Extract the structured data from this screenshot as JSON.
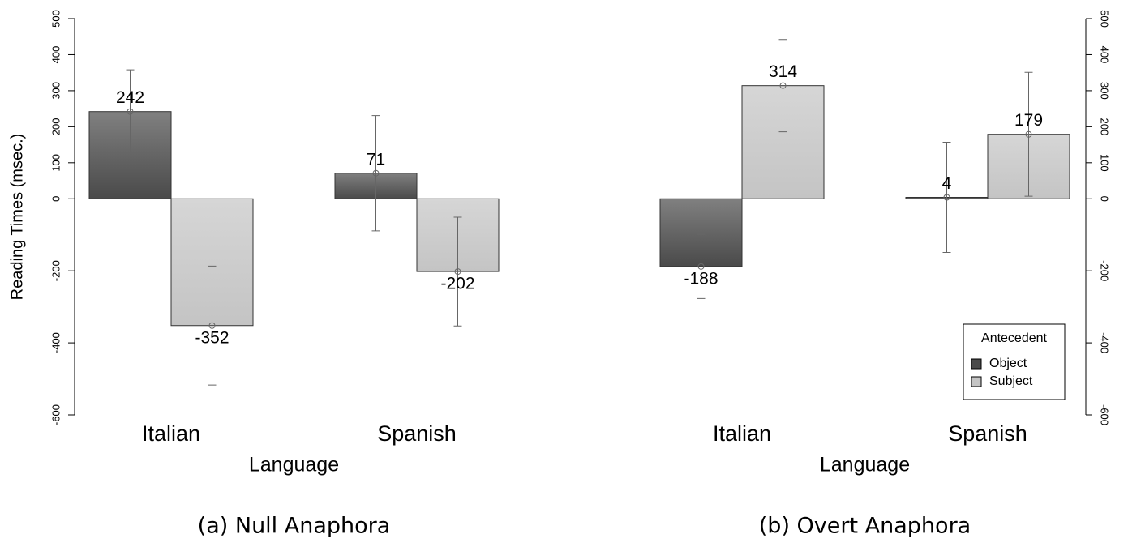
{
  "chart_data": [
    {
      "type": "bar",
      "caption": "(a) Null Anaphora",
      "xlabel": "Language",
      "ylabel": "Reading Times (msec.)",
      "categories": [
        "Italian",
        "Spanish"
      ],
      "series": [
        {
          "name": "Object",
          "color": "#4a4a4a",
          "values": [
            242,
            71
          ],
          "errors": [
            116,
            160
          ]
        },
        {
          "name": "Subject",
          "color": "#c4c4c4",
          "values": [
            -352,
            -202
          ],
          "errors": [
            165,
            151
          ]
        }
      ],
      "ylim": [
        -600,
        500
      ],
      "yticks": [
        -600,
        -400,
        -200,
        0,
        100,
        200,
        300,
        400,
        500
      ],
      "y_axis": "left"
    },
    {
      "type": "bar",
      "caption": "(b) Overt Anaphora",
      "xlabel": "Language",
      "categories": [
        "Italian",
        "Spanish"
      ],
      "series": [
        {
          "name": "Object",
          "color": "#4a4a4a",
          "values": [
            -188,
            4
          ],
          "errors": [
            89,
            153
          ]
        },
        {
          "name": "Subject",
          "color": "#c4c4c4",
          "values": [
            314,
            179
          ],
          "errors": [
            128,
            172
          ]
        }
      ],
      "ylim": [
        -600,
        500
      ],
      "yticks": [
        -600,
        -400,
        -200,
        0,
        100,
        200,
        300,
        400,
        500
      ],
      "y_axis": "right",
      "legend": {
        "title": "Antecedent",
        "position": "bottom-right"
      }
    }
  ]
}
